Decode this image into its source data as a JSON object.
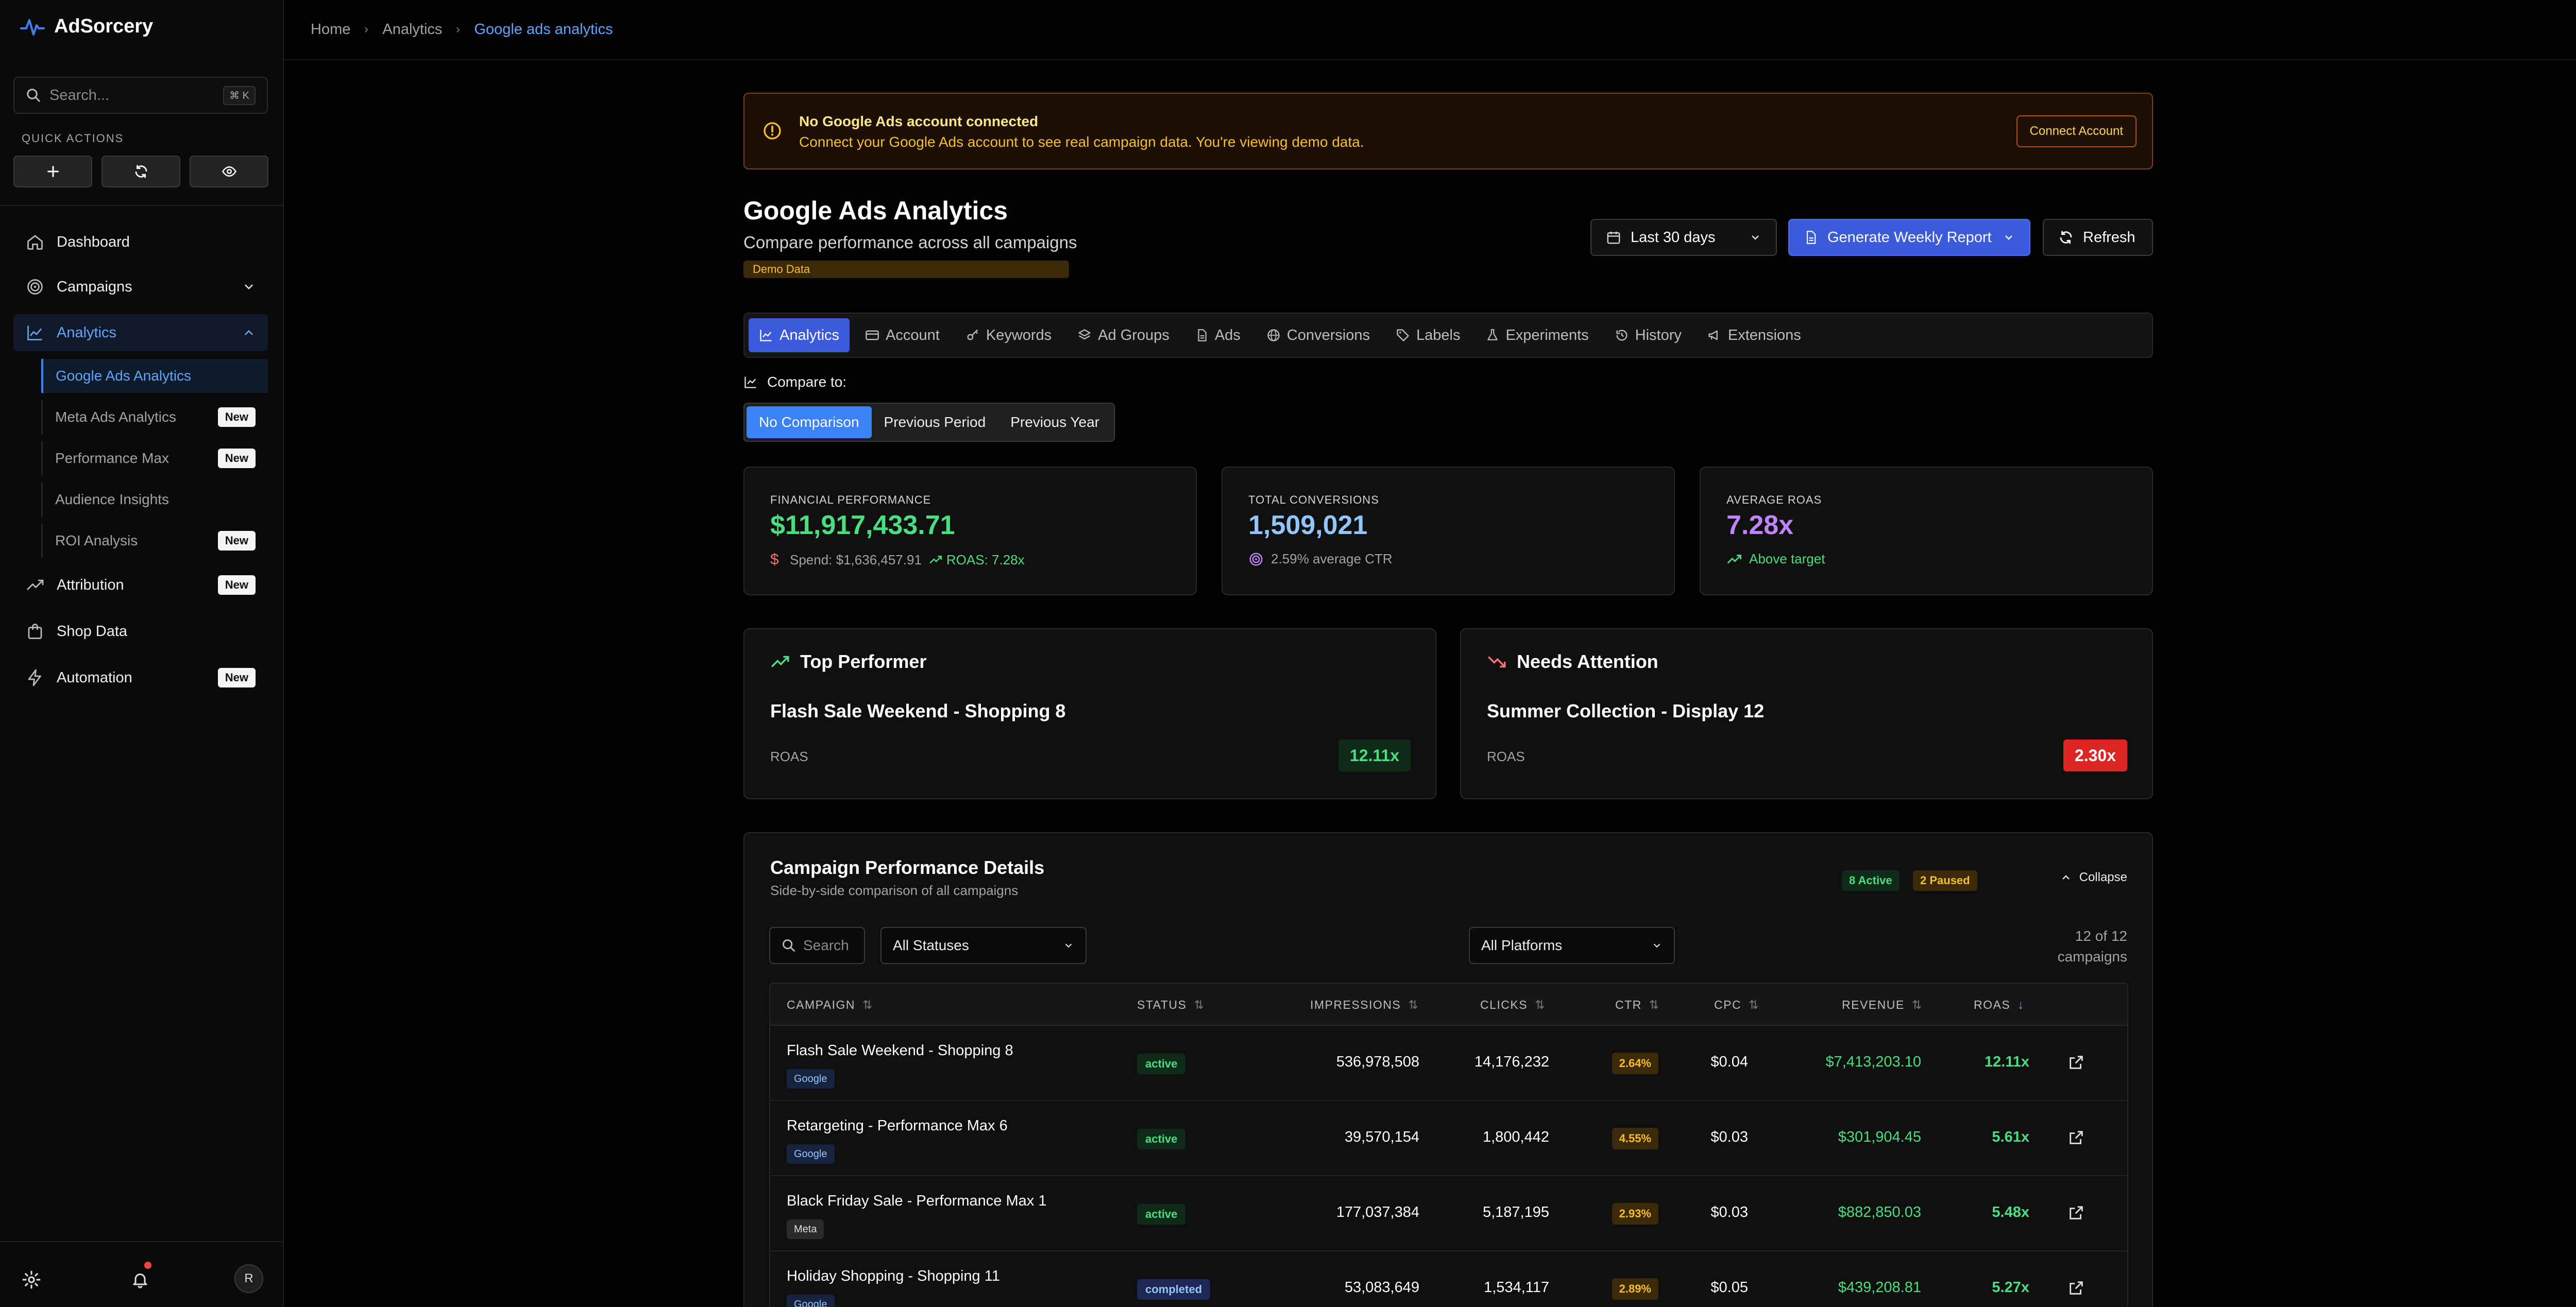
{
  "app": {
    "name": "AdSorcery"
  },
  "sidebar": {
    "search_placeholder": "Search...",
    "search_shortcut": "⌘ K",
    "quick_actions_label": "QUICK ACTIONS",
    "nav": [
      {
        "label": "Dashboard",
        "icon": "home-icon"
      },
      {
        "label": "Campaigns",
        "icon": "target-icon"
      },
      {
        "label": "Analytics",
        "icon": "chart-line-icon"
      },
      {
        "label": "Attribution",
        "icon": "trending-up-icon",
        "badge": "New"
      },
      {
        "label": "Shop Data",
        "icon": "bag-icon"
      },
      {
        "label": "Automation",
        "icon": "bolt-icon",
        "badge": "New"
      }
    ],
    "analytics_sub": [
      {
        "label": "Google Ads Analytics",
        "active": true
      },
      {
        "label": "Meta Ads Analytics",
        "badge": "New"
      },
      {
        "label": "Performance Max",
        "badge": "New"
      },
      {
        "label": "Audience Insights"
      },
      {
        "label": "ROI Analysis",
        "badge": "New"
      }
    ],
    "avatar_initial": "R"
  },
  "breadcrumb": [
    "Home",
    "Analytics",
    "Google ads analytics"
  ],
  "alert": {
    "title": "No Google Ads account connected",
    "message": "Connect your Google Ads account to see real campaign data. You're viewing demo data.",
    "button": "Connect Account"
  },
  "header": {
    "title": "Google Ads Analytics",
    "subtitle": "Compare performance across all campaigns",
    "demo_tag": "Demo Data",
    "date_range": "Last 30 days",
    "report_button": "Generate Weekly Report",
    "refresh_button": "Refresh"
  },
  "tabs": [
    {
      "label": "Analytics",
      "icon": "chart-icon",
      "active": true
    },
    {
      "label": "Account",
      "icon": "card-icon"
    },
    {
      "label": "Keywords",
      "icon": "key-icon"
    },
    {
      "label": "Ad Groups",
      "icon": "layers-icon"
    },
    {
      "label": "Ads",
      "icon": "file-icon"
    },
    {
      "label": "Conversions",
      "icon": "globe-icon"
    },
    {
      "label": "Labels",
      "icon": "tag-icon"
    },
    {
      "label": "Experiments",
      "icon": "flask-icon"
    },
    {
      "label": "History",
      "icon": "history-icon"
    },
    {
      "label": "Extensions",
      "icon": "megaphone-icon"
    }
  ],
  "compare": {
    "label": "Compare to:",
    "options": [
      "No Comparison",
      "Previous Period",
      "Previous Year"
    ],
    "selected": "No Comparison"
  },
  "kpis": {
    "financial": {
      "label": "FINANCIAL PERFORMANCE",
      "value": "$11,917,433.71",
      "spend": "Spend: $1,636,457.91",
      "roas": "ROAS: 7.28x",
      "color": "#4ade80"
    },
    "conversions": {
      "label": "TOTAL CONVERSIONS",
      "value": "1,509,021",
      "note": "2.59% average CTR",
      "color": "#93c5fd"
    },
    "roas": {
      "label": "AVERAGE ROAS",
      "value": "7.28x",
      "note": "Above target",
      "color": "#c084fc"
    }
  },
  "top_performer": {
    "heading": "Top Performer",
    "name": "Flash Sale Weekend - Shopping 8",
    "metric_label": "ROAS",
    "value": "12.11x"
  },
  "needs_attention": {
    "heading": "Needs Attention",
    "name": "Summer Collection - Display 12",
    "metric_label": "ROAS",
    "value": "2.30x"
  },
  "table": {
    "title": "Campaign Performance Details",
    "subtitle": "Side-by-side comparison of all campaigns",
    "active_badge": "8 Active",
    "paused_badge": "2 Paused",
    "collapse_label": "Collapse",
    "search_placeholder": "Search",
    "status_filter": "All Statuses",
    "platform_filter": "All Platforms",
    "count": "12 of 12 campaigns",
    "columns": [
      "CAMPAIGN",
      "STATUS",
      "IMPRESSIONS",
      "CLICKS",
      "CTR",
      "CPC",
      "REVENUE",
      "ROAS"
    ],
    "rows": [
      {
        "campaign": "Flash Sale Weekend - Shopping 8",
        "platform": "Google",
        "status": "active",
        "impressions": "536,978,508",
        "clicks": "14,176,232",
        "ctr": "2.64%",
        "cpc": "$0.04",
        "revenue": "$7,413,203.10",
        "roas": "12.11x"
      },
      {
        "campaign": "Retargeting - Performance Max 6",
        "platform": "Google",
        "status": "active",
        "impressions": "39,570,154",
        "clicks": "1,800,442",
        "ctr": "4.55%",
        "cpc": "$0.03",
        "revenue": "$301,904.45",
        "roas": "5.61x"
      },
      {
        "campaign": "Black Friday Sale - Performance Max 1",
        "platform": "Meta",
        "status": "active",
        "impressions": "177,037,384",
        "clicks": "5,187,195",
        "ctr": "2.93%",
        "cpc": "$0.03",
        "revenue": "$882,850.03",
        "roas": "5.48x"
      },
      {
        "campaign": "Holiday Shopping - Shopping 11",
        "platform": "Google",
        "status": "completed",
        "impressions": "53,083,649",
        "clicks": "1,534,117",
        "ctr": "2.89%",
        "cpc": "$0.05",
        "revenue": "$439,208.81",
        "roas": "5.27x"
      }
    ]
  },
  "colors": {
    "accent": "#3b5bdb",
    "positive": "#4ade80",
    "negative": "#dc2626",
    "warning": "#fbbf24"
  }
}
